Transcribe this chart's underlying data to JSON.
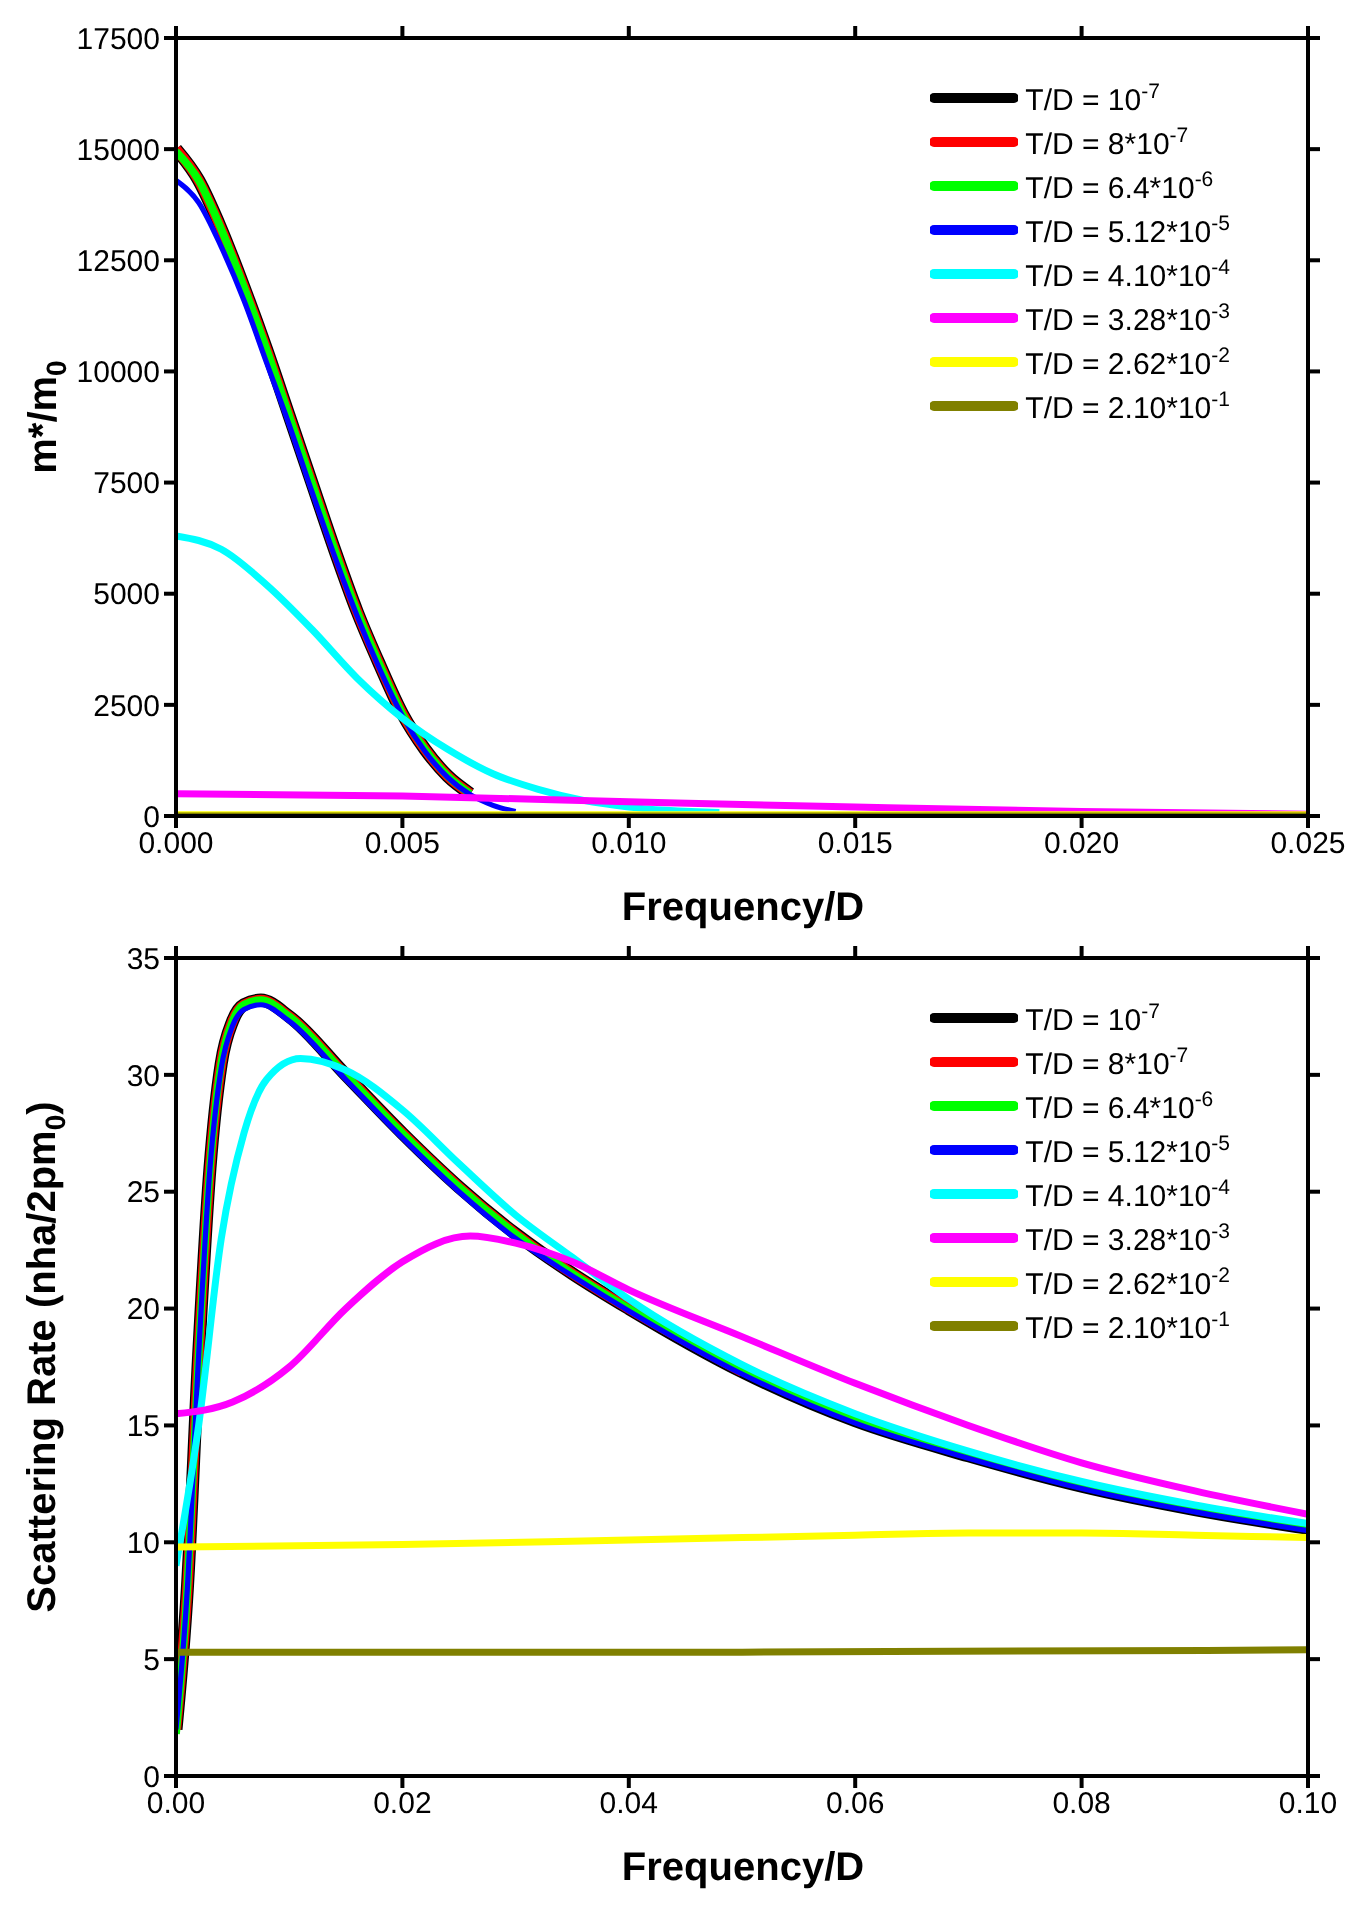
{
  "chart_data": [
    {
      "type": "line",
      "xlabel": "Frequency/D",
      "ylabel": "m*/m$_{0}$",
      "xlim": [
        0,
        0.025
      ],
      "xticks": [
        {
          "value": 0,
          "label": "0.000"
        },
        {
          "value": 0.005,
          "label": "0.005"
        },
        {
          "value": 0.01,
          "label": "0.010"
        },
        {
          "value": 0.015,
          "label": "0.015"
        },
        {
          "value": 0.02,
          "label": "0.020"
        },
        {
          "value": 0.025,
          "label": "0.025"
        }
      ],
      "ylim": [
        0,
        17500
      ],
      "yticks": [
        0,
        2500,
        5000,
        7500,
        10000,
        12500,
        15000,
        17500
      ],
      "grid": false,
      "legend": "top right",
      "marker": "none",
      "line_style": "solid",
      "series": [
        {
          "name": "T/D = 10$^{-7}$",
          "color": "#000000",
          "x": [
            0,
            0.0005,
            0.001,
            0.0015,
            0.002,
            0.0025,
            0.003,
            0.0035,
            0.004,
            0.0045,
            0.005,
            0.0055,
            0.006,
            0.0065
          ],
          "values": [
            15000,
            14300,
            13200,
            11900,
            10500,
            9000,
            7500,
            6000,
            4600,
            3400,
            2300,
            1500,
            900,
            500
          ]
        },
        {
          "name": "T/D = 8*10$^{-7}$",
          "color": "#ff0000",
          "x": [
            0,
            0.0005,
            0.001,
            0.0015,
            0.002,
            0.0025,
            0.003,
            0.0035,
            0.004,
            0.0045,
            0.005,
            0.0055,
            0.006,
            0.0065
          ],
          "values": [
            15000,
            14300,
            13200,
            11900,
            10500,
            9000,
            7500,
            6000,
            4600,
            3400,
            2300,
            1500,
            900,
            500
          ]
        },
        {
          "name": "T/D = 6.4*10$^{-6}$",
          "color": "#00ff00",
          "x": [
            0,
            0.0005,
            0.001,
            0.0015,
            0.002,
            0.0025,
            0.003,
            0.0035,
            0.004,
            0.0045,
            0.005,
            0.0055,
            0.006,
            0.0065
          ],
          "values": [
            14950,
            14300,
            13200,
            11900,
            10500,
            9000,
            7500,
            6000,
            4600,
            3400,
            2300,
            1500,
            900,
            500
          ]
        },
        {
          "name": "T/D = 5.12*10$^{-5}$",
          "color": "#0000ff",
          "x": [
            0,
            0.0005,
            0.001,
            0.0015,
            0.002,
            0.0025,
            0.003,
            0.0035,
            0.004,
            0.0045,
            0.005,
            0.0055,
            0.006,
            0.0065,
            0.007,
            0.0075
          ],
          "values": [
            14300,
            13800,
            12800,
            11600,
            10200,
            8800,
            7300,
            5850,
            4500,
            3300,
            2250,
            1450,
            870,
            480,
            240,
            100
          ]
        },
        {
          "name": "T/D = 4.10*10$^{-4}$",
          "color": "#00ffff",
          "x": [
            0,
            0.001,
            0.002,
            0.003,
            0.004,
            0.005,
            0.006,
            0.007,
            0.008,
            0.009,
            0.01,
            0.012
          ],
          "values": [
            6300,
            6000,
            5200,
            4200,
            3100,
            2200,
            1500,
            950,
            600,
            350,
            200,
            80
          ]
        },
        {
          "name": "T/D = 3.28*10$^{-3}$",
          "color": "#ff00ff",
          "x": [
            0,
            0.005,
            0.01,
            0.015,
            0.02,
            0.025
          ],
          "values": [
            500,
            450,
            320,
            200,
            100,
            40
          ]
        },
        {
          "name": "T/D = 2.62*10$^{-2}$",
          "color": "#ffff00",
          "x": [
            0,
            0.025
          ],
          "values": [
            30,
            30
          ]
        },
        {
          "name": "T/D = 2.10*10$^{-1}$",
          "color": "#808000",
          "x": [
            0,
            0.025
          ],
          "values": [
            0,
            0
          ]
        }
      ]
    },
    {
      "type": "line",
      "xlabel": "Frequency/D",
      "ylabel": "Scattering Rate (nha/2pm$_{0}$)",
      "xlim": [
        0,
        0.1
      ],
      "xticks": [
        {
          "value": 0,
          "label": "0.00"
        },
        {
          "value": 0.02,
          "label": "0.02"
        },
        {
          "value": 0.04,
          "label": "0.04"
        },
        {
          "value": 0.06,
          "label": "0.06"
        },
        {
          "value": 0.08,
          "label": "0.08"
        },
        {
          "value": 0.1,
          "label": "0.10"
        }
      ],
      "ylim": [
        0,
        35
      ],
      "yticks": [
        0,
        5,
        10,
        15,
        20,
        25,
        30,
        35
      ],
      "grid": false,
      "legend": "top right",
      "marker": "none",
      "line_style": "solid",
      "series": [
        {
          "name": "T/D = 10$^{-7}$",
          "color": "#000000",
          "x": [
            0,
            0.001,
            0.002,
            0.003,
            0.004,
            0.005,
            0.006,
            0.0075,
            0.01,
            0.015,
            0.02,
            0.025,
            0.03,
            0.035,
            0.04,
            0.05,
            0.06,
            0.07,
            0.08,
            0.09,
            0.1
          ],
          "values": [
            2,
            8,
            18,
            26,
            30.5,
            32.3,
            33,
            33.2,
            32.5,
            30,
            27.5,
            25.2,
            23.2,
            21.5,
            20,
            17.3,
            15.2,
            13.7,
            12.4,
            11.4,
            10.6
          ]
        },
        {
          "name": "T/D = 8*10$^{-7}$",
          "color": "#ff0000",
          "x": [
            0,
            0.001,
            0.002,
            0.003,
            0.004,
            0.005,
            0.006,
            0.0075,
            0.01,
            0.015,
            0.02,
            0.025,
            0.03,
            0.035,
            0.04,
            0.05
          ],
          "values": [
            2,
            8,
            18,
            26,
            30.5,
            32.3,
            33,
            33.2,
            32.5,
            30,
            27.5,
            25.2,
            23.2,
            21.5,
            20,
            17.3
          ]
        },
        {
          "name": "T/D = 6.4*10$^{-6}$",
          "color": "#00ff00",
          "x": [
            0,
            0.001,
            0.002,
            0.003,
            0.004,
            0.005,
            0.006,
            0.0075,
            0.01,
            0.015,
            0.02,
            0.025,
            0.03,
            0.035,
            0.04,
            0.05,
            0.06,
            0.07,
            0.08,
            0.09,
            0.1
          ],
          "values": [
            1.8,
            8,
            18,
            26,
            30.5,
            32.3,
            33,
            33.2,
            32.5,
            30,
            27.5,
            25.2,
            23.2,
            21.5,
            20,
            17.3,
            15.2,
            13.7,
            12.4,
            11.4,
            10.6
          ]
        },
        {
          "name": "T/D = 5.12*10$^{-5}$",
          "color": "#0000ff",
          "x": [
            0,
            0.001,
            0.002,
            0.003,
            0.004,
            0.005,
            0.006,
            0.0075,
            0.01,
            0.015,
            0.02,
            0.025,
            0.03,
            0.035,
            0.04,
            0.05,
            0.06,
            0.07,
            0.08,
            0.09,
            0.1
          ],
          "values": [
            2,
            8,
            18,
            26,
            30.3,
            32.1,
            32.8,
            33,
            32.3,
            29.8,
            27.3,
            25,
            23,
            21.4,
            19.9,
            17.2,
            15.1,
            13.6,
            12.3,
            11.3,
            10.5
          ]
        },
        {
          "name": "T/D = 4.10*10$^{-4}$",
          "color": "#00ffff",
          "x": [
            0,
            0.002,
            0.004,
            0.006,
            0.008,
            0.011,
            0.015,
            0.02,
            0.025,
            0.03,
            0.035,
            0.04,
            0.05,
            0.06,
            0.07,
            0.08,
            0.09,
            0.1
          ],
          "values": [
            9,
            15,
            23,
            27.5,
            29.8,
            30.7,
            30.2,
            28.5,
            26.2,
            24,
            22.2,
            20.4,
            17.6,
            15.5,
            13.9,
            12.6,
            11.6,
            10.8
          ]
        },
        {
          "name": "T/D = 3.28*10$^{-3}$",
          "color": "#ff00ff",
          "x": [
            0,
            0.005,
            0.01,
            0.015,
            0.02,
            0.026,
            0.03,
            0.035,
            0.04,
            0.05,
            0.06,
            0.07,
            0.08,
            0.09,
            0.1
          ],
          "values": [
            15.5,
            16,
            17.5,
            20,
            22,
            23.1,
            22.8,
            22,
            20.8,
            18.8,
            16.8,
            15,
            13.4,
            12.2,
            11.2
          ]
        },
        {
          "name": "T/D = 2.62*10$^{-2}$",
          "color": "#ffff00",
          "x": [
            0,
            0.02,
            0.04,
            0.06,
            0.07,
            0.08,
            0.09,
            0.1
          ],
          "values": [
            9.8,
            9.9,
            10.1,
            10.3,
            10.4,
            10.4,
            10.3,
            10.2
          ]
        },
        {
          "name": "T/D = 2.10*10$^{-1}$",
          "color": "#808000",
          "x": [
            0,
            0.05,
            0.1
          ],
          "values": [
            5.3,
            5.3,
            5.4
          ]
        }
      ]
    }
  ]
}
